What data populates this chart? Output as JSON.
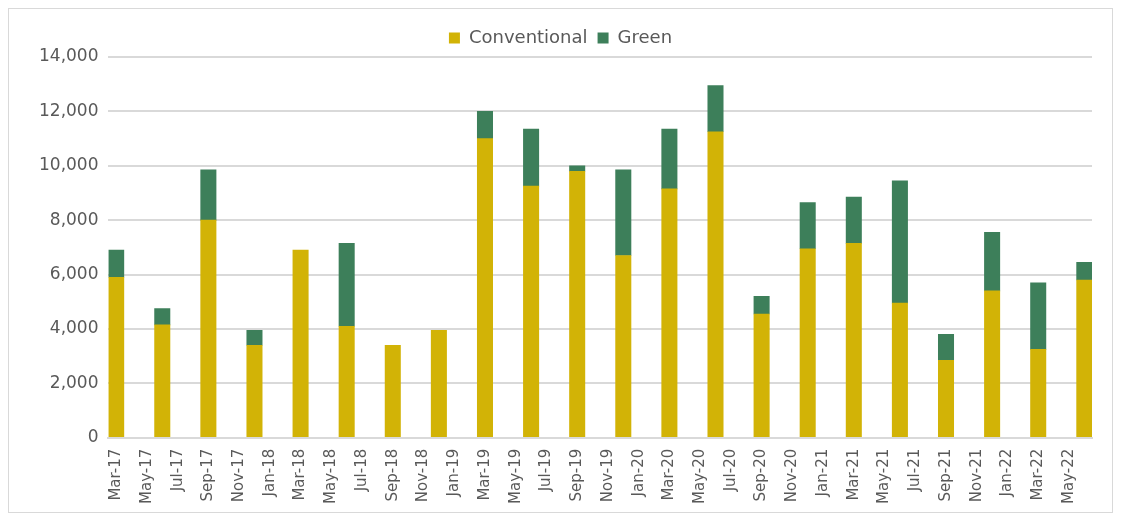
{
  "chart_data": {
    "type": "bar",
    "stacked": true,
    "legend": "top",
    "grid": "y",
    "categories": [
      "Mar-17",
      null,
      "May-17",
      null,
      "Jul-17",
      null,
      "Sep-17",
      null,
      "Nov-17",
      null,
      "Jan-18",
      null,
      "Mar-18",
      null,
      "May-18",
      null,
      "Jul-18",
      null,
      "Sep-18",
      null,
      "Nov-18",
      null,
      "Jan-19",
      null,
      "Mar-19",
      null,
      "May-19",
      null,
      "Jul-19",
      null,
      "Sep-19",
      null,
      "Nov-19",
      null,
      "Jan-20",
      null,
      "Mar-20",
      null,
      "May-20",
      null,
      "Jul-20",
      null,
      "Sep-20",
      null,
      "Nov-20",
      null,
      "Jan-21",
      null,
      "Mar-21",
      null,
      "May-21",
      null,
      "Jul-21",
      null,
      "Sep-21",
      null,
      "Nov-21",
      null,
      "Jan-22",
      null,
      "Mar-22",
      null,
      "May-22",
      null
    ],
    "series": [
      {
        "name": "Conventional",
        "color": "#d2b306",
        "values": [
          5900,
          null,
          null,
          4150,
          null,
          null,
          8000,
          null,
          null,
          3400,
          null,
          null,
          6900,
          null,
          null,
          4100,
          null,
          null,
          3400,
          null,
          null,
          3950,
          null,
          null,
          11000,
          null,
          null,
          9250,
          null,
          null,
          9800,
          null,
          null,
          6700,
          null,
          null,
          9150,
          null,
          null,
          11250,
          null,
          null,
          4550,
          null,
          null,
          6950,
          null,
          null,
          7150,
          null,
          null,
          4950,
          null,
          null,
          2850,
          null,
          null,
          5400,
          null,
          null,
          3250,
          null,
          null,
          5800
        ]
      },
      {
        "name": "Green",
        "color": "#3d7f5a",
        "values": [
          1000,
          null,
          null,
          600,
          null,
          null,
          1850,
          null,
          null,
          550,
          null,
          null,
          null,
          null,
          null,
          3050,
          null,
          null,
          null,
          null,
          null,
          null,
          null,
          null,
          1000,
          null,
          null,
          2100,
          null,
          null,
          200,
          null,
          null,
          3150,
          null,
          null,
          2200,
          null,
          null,
          1700,
          null,
          null,
          650,
          null,
          null,
          1700,
          null,
          null,
          1700,
          null,
          null,
          4500,
          null,
          null,
          950,
          null,
          null,
          2150,
          null,
          null,
          2450,
          null,
          null,
          650
        ]
      }
    ],
    "ylim": [
      0,
      14000
    ],
    "yticks": [
      0,
      {
        "value": 2000,
        "label": "2,000"
      },
      {
        "value": 4000,
        "label": "4,000"
      },
      {
        "value": 6000,
        "label": "6,000"
      },
      {
        "value": 8000,
        "label": "8,000"
      },
      {
        "value": 10000,
        "label": "10,000"
      },
      {
        "value": 12000,
        "label": "12,000"
      },
      {
        "value": 14000,
        "label": "14,000"
      }
    ]
  }
}
